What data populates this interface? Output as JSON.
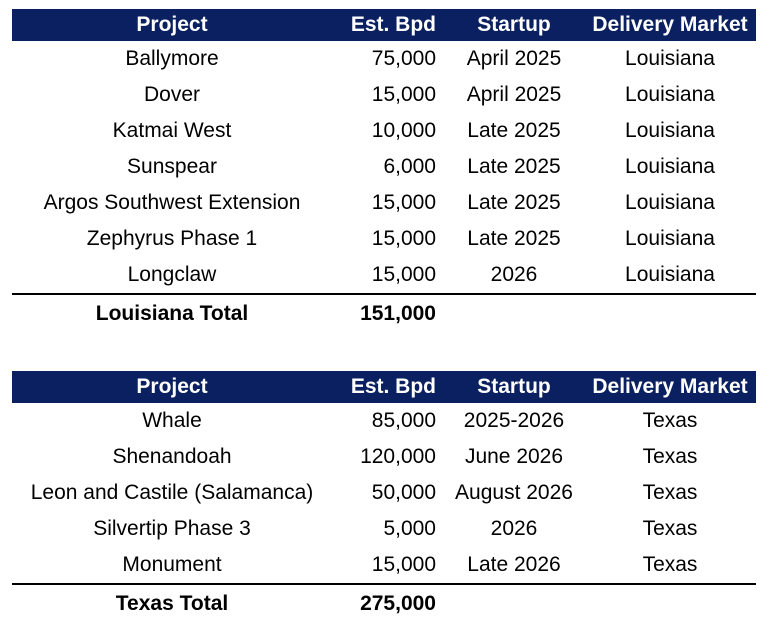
{
  "tables": [
    {
      "headers": {
        "project": "Project",
        "bpd": "Est. Bpd",
        "startup": "Startup",
        "market": "Delivery Market"
      },
      "rows": [
        {
          "project": "Ballymore",
          "bpd": "75,000",
          "startup": "April 2025",
          "market": "Louisiana"
        },
        {
          "project": "Dover",
          "bpd": "15,000",
          "startup": "April 2025",
          "market": "Louisiana"
        },
        {
          "project": "Katmai West",
          "bpd": "10,000",
          "startup": "Late 2025",
          "market": "Louisiana"
        },
        {
          "project": "Sunspear",
          "bpd": "6,000",
          "startup": "Late 2025",
          "market": "Louisiana"
        },
        {
          "project": "Argos Southwest Extension",
          "bpd": "15,000",
          "startup": "Late 2025",
          "market": "Louisiana"
        },
        {
          "project": "Zephyrus Phase 1",
          "bpd": "15,000",
          "startup": "Late 2025",
          "market": "Louisiana"
        },
        {
          "project": "Longclaw",
          "bpd": "15,000",
          "startup": "2026",
          "market": "Louisiana"
        }
      ],
      "total": {
        "label": "Louisiana Total",
        "bpd": "151,000"
      }
    },
    {
      "headers": {
        "project": "Project",
        "bpd": "Est. Bpd",
        "startup": "Startup",
        "market": "Delivery Market"
      },
      "rows": [
        {
          "project": "Whale",
          "bpd": "85,000",
          "startup": "2025-2026",
          "market": "Texas"
        },
        {
          "project": "Shenandoah",
          "bpd": "120,000",
          "startup": "June 2026",
          "market": "Texas"
        },
        {
          "project": "Leon and Castile (Salamanca)",
          "bpd": "50,000",
          "startup": "August 2026",
          "market": "Texas"
        },
        {
          "project": "Silvertip Phase 3",
          "bpd": "5,000",
          "startup": "2026",
          "market": "Texas"
        },
        {
          "project": "Monument",
          "bpd": "15,000",
          "startup": "Late 2026",
          "market": "Texas"
        }
      ],
      "total": {
        "label": "Texas Total",
        "bpd": "275,000"
      }
    }
  ],
  "colors": {
    "header_bg": "#0a2060",
    "header_text": "#ffffff"
  }
}
